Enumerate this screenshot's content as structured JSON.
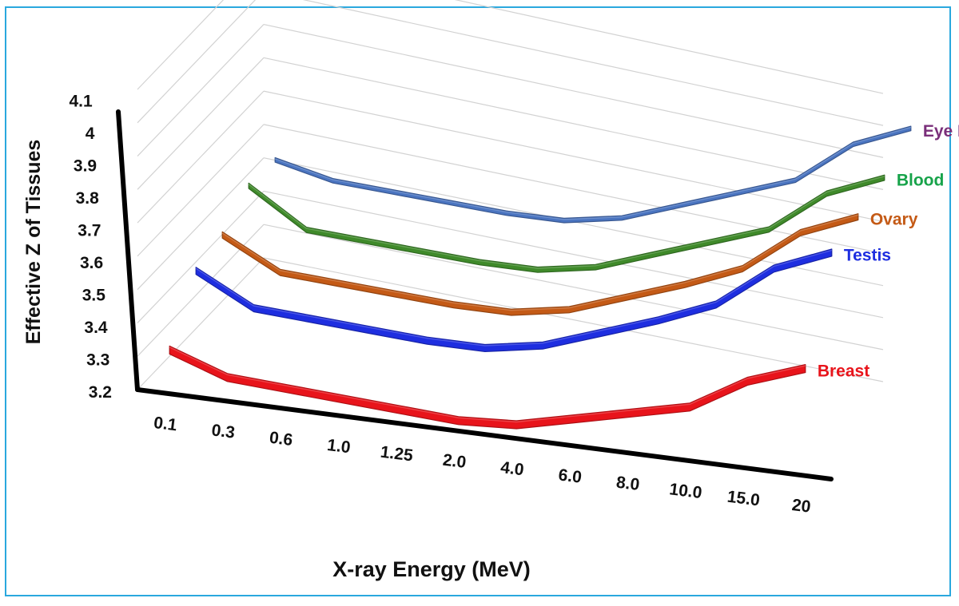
{
  "chart_data": {
    "type": "line",
    "subtype": "3d-line",
    "title": "",
    "xlabel": "X-ray Energy (MeV)",
    "ylabel": "Effective Z of Tissues",
    "categories": [
      "0.1",
      "0.3",
      "0.6",
      "1.0",
      "1.25",
      "2.0",
      "4.0",
      "6.0",
      "8.0",
      "10.0",
      "15.0",
      "20"
    ],
    "y_ticks": [
      "3.2",
      "3.3",
      "3.4",
      "3.5",
      "3.6",
      "3.7",
      "3.8",
      "3.9",
      "4",
      "4.1"
    ],
    "ylim": [
      3.2,
      4.1
    ],
    "grid": true,
    "legend": "series labels at right end of each line",
    "series": [
      {
        "name": "Breast",
        "color": "#e8141b",
        "values": [
          3.33,
          3.27,
          3.26,
          3.25,
          3.24,
          3.23,
          3.24,
          3.28,
          3.32,
          3.36,
          3.46,
          3.52
        ]
      },
      {
        "name": "Testis",
        "color": "#1e2ee0",
        "values": [
          3.51,
          3.42,
          3.41,
          3.4,
          3.39,
          3.39,
          3.42,
          3.48,
          3.54,
          3.61,
          3.74,
          3.81
        ]
      },
      {
        "name": "Ovary",
        "color": "#c45a16",
        "values": [
          3.56,
          3.47,
          3.46,
          3.45,
          3.44,
          3.44,
          3.47,
          3.53,
          3.59,
          3.66,
          3.79,
          3.86
        ]
      },
      {
        "name": "Blood",
        "color": "#3f8a2a",
        "values": [
          3.65,
          3.54,
          3.53,
          3.52,
          3.51,
          3.51,
          3.54,
          3.6,
          3.66,
          3.72,
          3.85,
          3.92
        ]
      },
      {
        "name": "Eye Lens",
        "color": "#4a74c0",
        "values": [
          3.67,
          3.63,
          3.62,
          3.61,
          3.6,
          3.6,
          3.63,
          3.69,
          3.75,
          3.81,
          3.94,
          4.01
        ]
      }
    ],
    "label_colors": {
      "Eye Lens": "#7a2f7a",
      "Blood": "#17a34a",
      "Ovary": "#c45a16",
      "Testis": "#1e2ee0",
      "Breast": "#e8141b"
    }
  }
}
